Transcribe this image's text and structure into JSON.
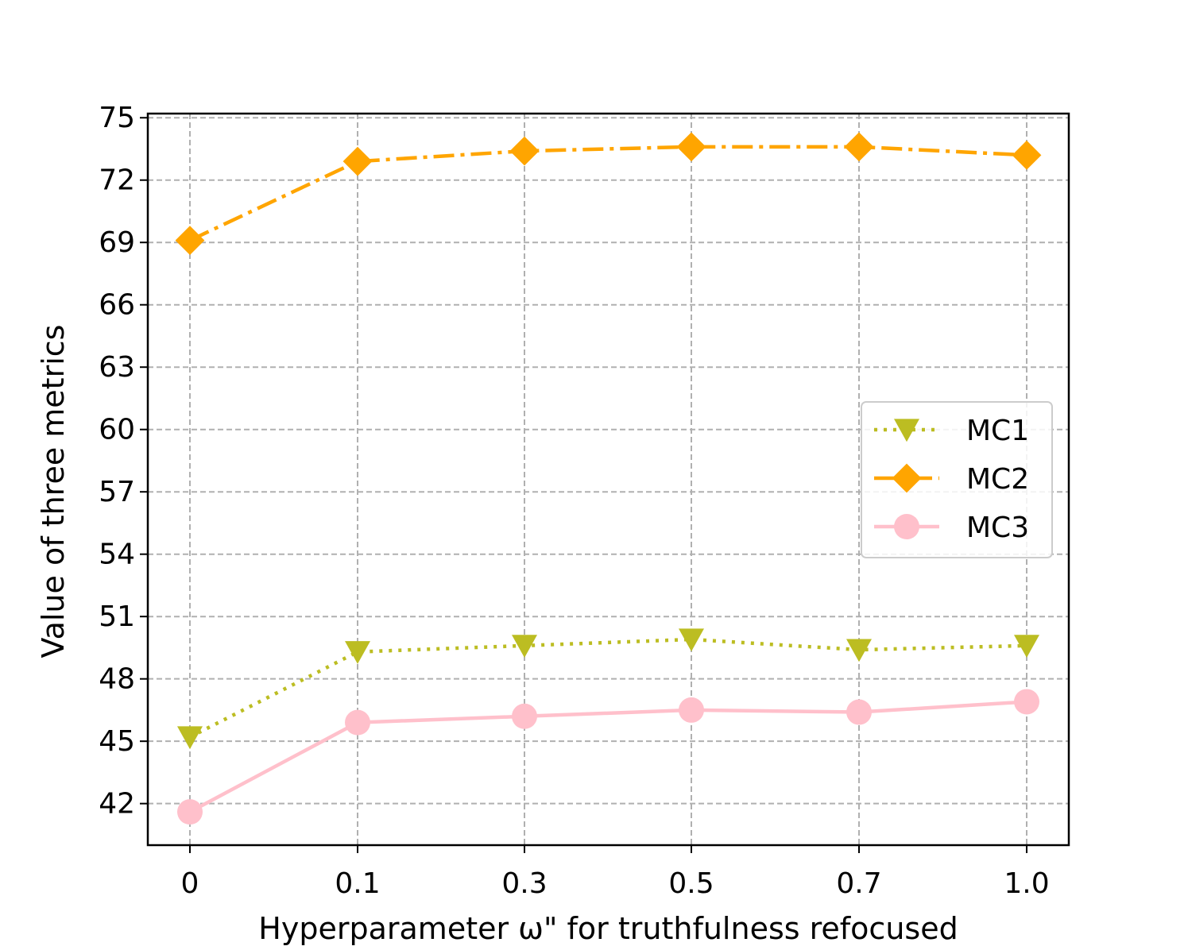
{
  "chart_data": {
    "type": "line",
    "xlabel": "Hyperparameter ω\" for truthfulness refocused",
    "ylabel": "Value of three metrics",
    "categories": [
      "0",
      "0.1",
      "0.3",
      "0.5",
      "0.7",
      "1.0"
    ],
    "y_ticks": [
      "42",
      "45",
      "48",
      "51",
      "54",
      "57",
      "60",
      "63",
      "66",
      "69",
      "72",
      "75"
    ],
    "ylim": [
      40,
      75.2
    ],
    "grid": true,
    "legend_position": "center-right",
    "series": [
      {
        "name": "MC1",
        "values": [
          45.2,
          49.3,
          49.6,
          49.9,
          49.4,
          49.6
        ],
        "color": "#bcbd22",
        "marker": "triangle-down",
        "linestyle": "dotted"
      },
      {
        "name": "MC2",
        "values": [
          69.1,
          72.9,
          73.4,
          73.6,
          73.6,
          73.2
        ],
        "color": "#ffa500",
        "marker": "diamond",
        "linestyle": "dashdot"
      },
      {
        "name": "MC3",
        "values": [
          41.6,
          45.9,
          46.2,
          46.5,
          46.4,
          46.9
        ],
        "color": "#ffc0cb",
        "marker": "circle",
        "linestyle": "solid"
      }
    ]
  }
}
